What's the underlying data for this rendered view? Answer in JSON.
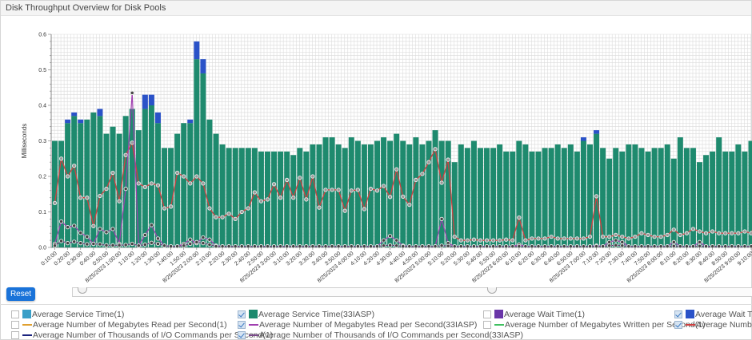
{
  "header": {
    "title": "Disk Throughput Overview for Disk Pools"
  },
  "controls": {
    "reset_label": "Reset",
    "slider_range": [
      0,
      0.6
    ]
  },
  "legend": [
    {
      "label": "Average Service Time(1)",
      "checked": false,
      "kind": "box",
      "color": "#3a9fc8"
    },
    {
      "label": "Average Service Time(33IASP)",
      "checked": true,
      "kind": "box",
      "color": "#1e8a6e"
    },
    {
      "label": "Average Wait Time(1)",
      "checked": false,
      "kind": "box",
      "color": "#6a36a8"
    },
    {
      "label": "Average Wait Time",
      "checked": true,
      "kind": "box",
      "color": "#2a52c8"
    },
    {
      "label": "Average Number of Megabytes Read per Second(1)",
      "checked": false,
      "kind": "line",
      "color": "#e0a030"
    },
    {
      "label": "Average Number of Megabytes Read per Second(33IASP)",
      "checked": true,
      "kind": "line",
      "color": "#a040b0"
    },
    {
      "label": "Average Number of Megabytes Written per Second(1)",
      "checked": false,
      "kind": "line",
      "color": "#40c060"
    },
    {
      "label": "Average Number o",
      "checked": true,
      "kind": "line",
      "color": "#d04040"
    },
    {
      "label": "Average Number of Thousands of I/O Commands per Second(1)",
      "checked": false,
      "kind": "line",
      "color": "#1a237e"
    },
    {
      "label": "Average Number of Thousands of I/O Commands per Second(33IASP)",
      "checked": true,
      "kind": "line",
      "color": "#7a4a8a"
    }
  ],
  "chart_data": {
    "type": "bar",
    "title": "Disk Throughput Overview for Disk Pools",
    "ylabel": "Milliseconds",
    "xlabel": "",
    "ylim": [
      0,
      0.6
    ],
    "y_ticks": [
      "0.0",
      "0.1",
      "0.2",
      "0.3",
      "0.4",
      "0.5",
      "0.6"
    ],
    "grid": true,
    "x_tick_labels": [
      "0:10:00",
      "0:20:00",
      "0:30:00",
      "0:40:00",
      "0:50:00",
      "8/25/2023 1:00:00",
      "1:10:00",
      "1:20:00",
      "1:30:00",
      "1:40:00",
      "1:50:00",
      "8/25/2023 2:00:00",
      "2:10:00",
      "2:20:00",
      "2:30:00",
      "2:40:00",
      "2:50:00",
      "8/25/2023 3:00:00",
      "3:10:00",
      "3:20:00",
      "3:30:00",
      "3:40:00",
      "3:50:00",
      "8/25/2023 4:00:00",
      "4:10:00",
      "4:20:00",
      "4:30:00",
      "4:40:00",
      "4:50:00",
      "8/25/2023 5:00:00",
      "5:10:00",
      "5:20:00",
      "5:30:00",
      "5:40:00",
      "5:50:00",
      "8/25/2023 6:00:00",
      "6:10:00",
      "6:20:00",
      "6:30:00",
      "6:40:00",
      "6:50:00",
      "8/25/2023 7:00:00",
      "7:10:00",
      "7:20:00",
      "7:30:00",
      "7:40:00",
      "7:50:00",
      "8/25/2023 8:00:00",
      "8:10:00",
      "8:20:00",
      "8:30:00",
      "8:40:00",
      "8:50:00",
      "8/25/2023 9:00:00",
      "9:10:00"
    ],
    "bar_series": [
      {
        "name": "Average Service Time(33IASP)",
        "color": "#1e8a6e",
        "values": [
          0.3,
          0.3,
          0.35,
          0.37,
          0.35,
          0.36,
          0.38,
          0.37,
          0.32,
          0.34,
          0.32,
          0.37,
          0.39,
          0.33,
          0.39,
          0.4,
          0.35,
          0.28,
          0.28,
          0.32,
          0.35,
          0.35,
          0.53,
          0.49,
          0.36,
          0.32,
          0.29,
          0.28,
          0.28,
          0.28,
          0.28,
          0.28,
          0.27,
          0.27,
          0.27,
          0.27,
          0.27,
          0.26,
          0.28,
          0.27,
          0.29,
          0.29,
          0.31,
          0.31,
          0.29,
          0.28,
          0.31,
          0.3,
          0.29,
          0.29,
          0.3,
          0.31,
          0.3,
          0.32,
          0.3,
          0.29,
          0.31,
          0.29,
          0.3,
          0.33,
          0.3,
          0.3,
          0.24,
          0.29,
          0.28,
          0.3,
          0.28,
          0.28,
          0.28,
          0.29,
          0.27,
          0.27,
          0.3,
          0.29,
          0.27,
          0.27,
          0.28,
          0.28,
          0.29,
          0.28,
          0.29,
          0.27,
          0.3,
          0.29,
          0.32,
          0.28,
          0.25,
          0.28,
          0.27,
          0.29,
          0.29,
          0.28,
          0.27,
          0.28,
          0.28,
          0.29,
          0.25,
          0.31,
          0.28,
          0.28,
          0.24,
          0.26,
          0.27,
          0.31,
          0.27,
          0.27,
          0.29,
          0.27,
          0.3,
          0.27
        ]
      },
      {
        "name": "Average Wait Time",
        "color": "#2a52c8",
        "values": [
          0,
          0,
          0.01,
          0.01,
          0.01,
          0,
          0,
          0.02,
          0,
          0,
          0,
          0,
          0,
          0,
          0.04,
          0.03,
          0.03,
          0,
          0,
          0,
          0,
          0.01,
          0.05,
          0.04,
          0,
          0,
          0,
          0,
          0,
          0,
          0,
          0,
          0,
          0,
          0,
          0,
          0,
          0,
          0,
          0,
          0,
          0,
          0,
          0,
          0,
          0,
          0,
          0,
          0,
          0,
          0,
          0,
          0,
          0,
          0,
          0,
          0,
          0,
          0,
          0,
          0,
          0,
          0,
          0,
          0,
          0,
          0,
          0,
          0,
          0,
          0,
          0,
          0,
          0,
          0,
          0,
          0,
          0,
          0,
          0,
          0,
          0,
          0.01,
          0,
          0.01,
          0,
          0,
          0,
          0,
          0,
          0,
          0,
          0,
          0,
          0,
          0,
          0,
          0,
          0,
          0,
          0,
          0,
          0,
          0,
          0,
          0,
          0,
          0,
          0,
          0
        ]
      }
    ],
    "line_series": [
      {
        "name": "Average Number o",
        "color": "#d04040",
        "values": [
          0.125,
          0.25,
          0.2,
          0.23,
          0.14,
          0.14,
          0.06,
          0.145,
          0.165,
          0.21,
          0.13,
          0.26,
          0.295,
          0.18,
          0.17,
          0.18,
          0.175,
          0.11,
          0.115,
          0.21,
          0.2,
          0.18,
          0.2,
          0.18,
          0.11,
          0.085,
          0.085,
          0.095,
          0.08,
          0.1,
          0.11,
          0.155,
          0.13,
          0.135,
          0.178,
          0.14,
          0.19,
          0.14,
          0.196,
          0.135,
          0.2,
          0.112,
          0.162,
          0.162,
          0.162,
          0.103,
          0.16,
          0.162,
          0.108,
          0.165,
          0.16,
          0.173,
          0.142,
          0.22,
          0.143,
          0.12,
          0.19,
          0.207,
          0.24,
          0.277,
          0.182,
          0.247,
          0.03,
          0.02,
          0.02,
          0.022,
          0.02,
          0.02,
          0.02,
          0.02,
          0.022,
          0.02,
          0.084,
          0.02,
          0.025,
          0.025,
          0.025,
          0.03,
          0.025,
          0.025,
          0.025,
          0.025,
          0.025,
          0.03,
          0.144,
          0.03,
          0.03,
          0.035,
          0.03,
          0.025,
          0.03,
          0.04,
          0.035,
          0.03,
          0.03,
          0.035,
          0.05,
          0.035,
          0.04,
          0.052,
          0.045,
          0.04,
          0.045,
          0.04,
          0.04,
          0.04,
          0.04,
          0.045,
          0.04,
          0.085
        ]
      },
      {
        "name": "Average Number of Megabytes Read per Second(33IASP)",
        "color": "#a040b0",
        "values": [
          0.01,
          0.073,
          0.057,
          0.061,
          0.041,
          0.03,
          0.01,
          0.052,
          0.043,
          0.052,
          0.01,
          0.165,
          0.435,
          0.005,
          0.035,
          0.063,
          0.025,
          0.005,
          0.003,
          0.003,
          0.01,
          0.022,
          0.012,
          0.028,
          0.022,
          0.005,
          0.003,
          0.003,
          0.003,
          0.003,
          0.003,
          0.003,
          0.003,
          0.003,
          0.003,
          0.003,
          0.003,
          0.003,
          0.003,
          0.003,
          0.003,
          0.003,
          0.003,
          0.003,
          0.003,
          0.003,
          0.003,
          0.003,
          0.003,
          0.003,
          0.003,
          0.02,
          0.032,
          0.02,
          0.005,
          0.003,
          0.003,
          0.003,
          0.003,
          0.003,
          0.08,
          0.012,
          0.003,
          0.003,
          0.003,
          0.003,
          0.003,
          0.003,
          0.003,
          0.003,
          0.003,
          0.003,
          0.008,
          0.003,
          0.003,
          0.003,
          0.003,
          0.003,
          0.003,
          0.003,
          0.003,
          0.003,
          0.003,
          0.003,
          0.005,
          0.003,
          0.015,
          0.02,
          0.015,
          0.003,
          0.003,
          0.003,
          0.003,
          0.003,
          0.003,
          0.003,
          0.015,
          0.003,
          0.003,
          0.003,
          0.015,
          0.003,
          0.003,
          0.003,
          0.003,
          0.003,
          0.003,
          0.003,
          0.003,
          0.003
        ]
      },
      {
        "name": "Average Number of Thousands of I/O Commands per Second(33IASP)",
        "color": "#6a3c7a",
        "values": [
          0.005,
          0.018,
          0.012,
          0.016,
          0.012,
          0.009,
          0.01,
          0.009,
          0.006,
          0.006,
          0.006,
          0.007,
          0.01,
          0.005,
          0.008,
          0.013,
          0.01,
          0.005,
          0.003,
          0.003,
          0.005,
          0.01,
          0.015,
          0.012,
          0.008,
          0.003,
          0.003,
          0.003,
          0.003,
          0.003,
          0.003,
          0.003,
          0.003,
          0.003,
          0.003,
          0.003,
          0.003,
          0.003,
          0.003,
          0.003,
          0.003,
          0.003,
          0.003,
          0.003,
          0.003,
          0.003,
          0.003,
          0.003,
          0.003,
          0.003,
          0.003,
          0.005,
          0.006,
          0.005,
          0.003,
          0.003,
          0.003,
          0.003,
          0.003,
          0.003,
          0.005,
          0.004,
          0.003,
          0.003,
          0.003,
          0.003,
          0.003,
          0.003,
          0.003,
          0.003,
          0.003,
          0.003,
          0.003,
          0.003,
          0.003,
          0.003,
          0.003,
          0.003,
          0.003,
          0.003,
          0.003,
          0.003,
          0.003,
          0.003,
          0.003,
          0.003,
          0.005,
          0.006,
          0.005,
          0.003,
          0.003,
          0.003,
          0.003,
          0.003,
          0.003,
          0.003,
          0.004,
          0.003,
          0.003,
          0.003,
          0.004,
          0.003,
          0.003,
          0.003,
          0.003,
          0.003,
          0.003,
          0.003,
          0.003,
          0.003
        ]
      }
    ]
  }
}
